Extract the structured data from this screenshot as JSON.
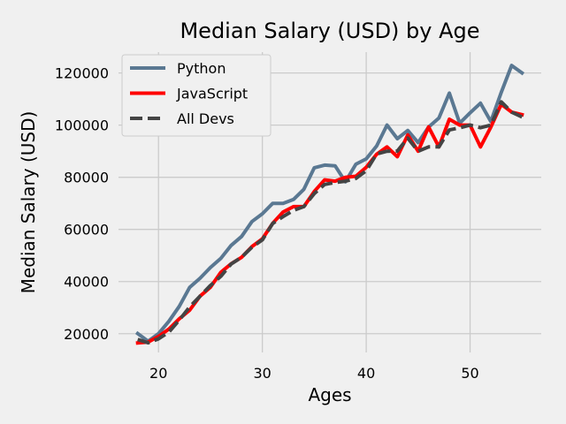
{
  "chart_data": {
    "type": "line",
    "title": "Median Salary (USD) by Age",
    "xlabel": "Ages",
    "ylabel": "Median Salary (USD)",
    "xlim": [
      16.15,
      56.85
    ],
    "ylim": [
      12800,
      128000
    ],
    "xticks": [
      20,
      30,
      40,
      50
    ],
    "yticks": [
      20000,
      40000,
      60000,
      80000,
      100000,
      120000
    ],
    "grid": true,
    "legend_position": "top-left",
    "x": [
      18,
      19,
      20,
      21,
      22,
      23,
      24,
      25,
      26,
      27,
      28,
      29,
      30,
      31,
      32,
      33,
      34,
      35,
      36,
      37,
      38,
      39,
      40,
      41,
      42,
      43,
      44,
      45,
      46,
      47,
      48,
      49,
      50,
      51,
      52,
      53,
      54,
      55
    ],
    "series": [
      {
        "name": "Python",
        "color": "#5a7892",
        "dash": "solid",
        "values": [
          20046,
          17100,
          20000,
          24744,
          30500,
          37732,
          41247,
          45372,
          48876,
          53850,
          57287,
          63016,
          65998,
          70003,
          70000,
          71496,
          75370,
          83640,
          84666,
          84392,
          78254,
          85000,
          87038,
          91991,
          100000,
          94796,
          97962,
          93302,
          99240,
          102736,
          112285,
          100771,
          104708,
          108423,
          101407,
          112542,
          122870,
          120000
        ]
      },
      {
        "name": "JavaScript",
        "color": "#ff0000",
        "dash": "solid",
        "values": [
          16446,
          16791,
          18942,
          21780,
          25704,
          29000,
          34372,
          37810,
          43515,
          46823,
          49293,
          53437,
          56373,
          62375,
          66674,
          68745,
          68746,
          74583,
          79000,
          78508,
          79996,
          80403,
          83820,
          88833,
          91660,
          87892,
          96243,
          90000,
          99313,
          91660,
          102264,
          100000,
          100000,
          91660,
          99240,
          108000,
          105000,
          104000
        ]
      },
      {
        "name": "All Devs",
        "color": "#444444",
        "dash": "dashed",
        "values": [
          17784,
          16500,
          18012,
          20628,
          25206,
          30252,
          34368,
          38496,
          42000,
          46752,
          49320,
          53200,
          56000,
          62316,
          64928,
          67317,
          68748,
          73752,
          77232,
          78000,
          78508,
          79536,
          82488,
          88935,
          90000,
          90056,
          95000,
          90000,
          91633,
          91660,
          98150,
          98964,
          100000,
          98988,
          100000,
          108923,
          105000,
          103117
        ]
      }
    ]
  }
}
